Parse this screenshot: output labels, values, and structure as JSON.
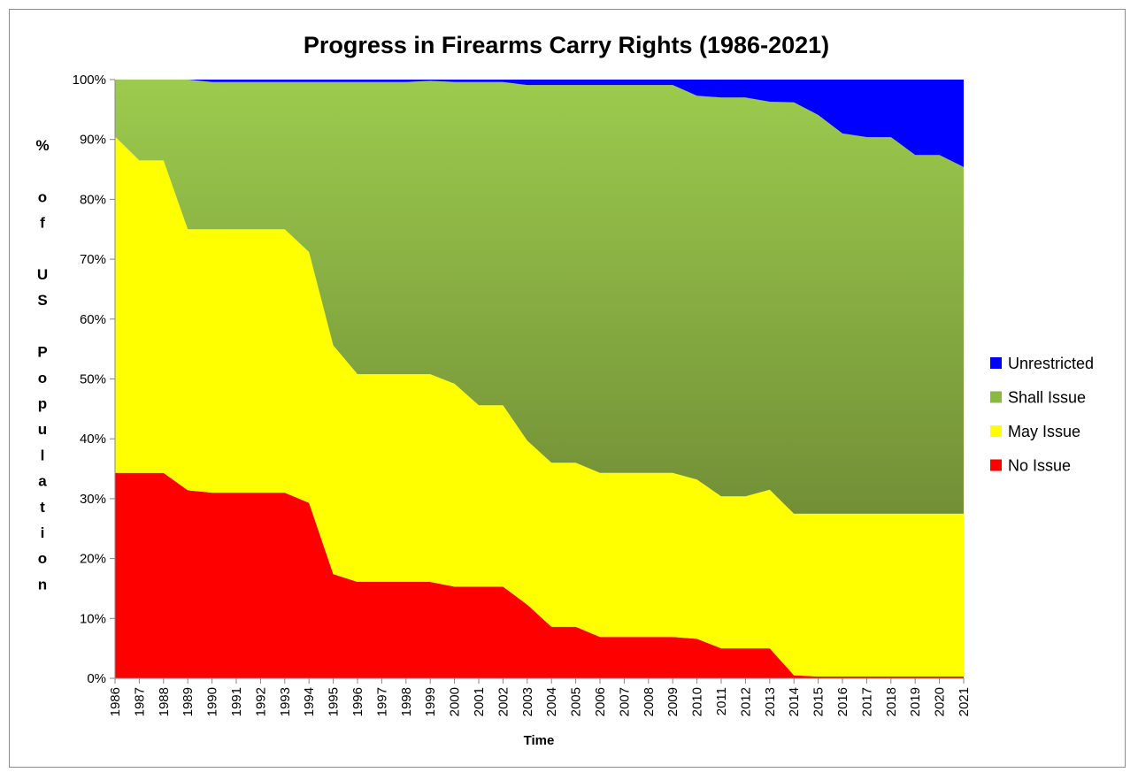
{
  "chart_data": {
    "type": "area",
    "stacked": true,
    "normalized_percent": true,
    "title": "Progress in Firearms Carry Rights (1986-2021)",
    "xlabel": "Time",
    "ylabel": "% of US Population",
    "x": [
      "1986",
      "1987",
      "1988",
      "1989",
      "1990",
      "1991",
      "1992",
      "1993",
      "1994",
      "1995",
      "1996",
      "1997",
      "1998",
      "1999",
      "2000",
      "2001",
      "2002",
      "2003",
      "2004",
      "2005",
      "2006",
      "2007",
      "2008",
      "2009",
      "2010",
      "2011",
      "2012",
      "2013",
      "2014",
      "2015",
      "2016",
      "2017",
      "2018",
      "2019",
      "2020",
      "2021"
    ],
    "ylim": [
      0,
      100
    ],
    "yticks": [
      "0%",
      "10%",
      "20%",
      "30%",
      "40%",
      "50%",
      "60%",
      "70%",
      "80%",
      "90%",
      "100%"
    ],
    "legend_position": "right",
    "series": [
      {
        "name": "No Issue",
        "color": "#ff0000",
        "values": [
          34.3,
          34.3,
          34.3,
          31.4,
          31.0,
          31.0,
          31.0,
          31.0,
          29.3,
          17.4,
          16.1,
          16.1,
          16.1,
          16.1,
          15.3,
          15.3,
          15.3,
          12.3,
          8.6,
          8.6,
          6.9,
          6.9,
          6.9,
          6.9,
          6.6,
          5.0,
          5.0,
          5.0,
          0.5,
          0.3,
          0.3,
          0.3,
          0.3,
          0.3,
          0.3,
          0.3
        ]
      },
      {
        "name": "May Issue",
        "color": "#ffff00",
        "values": [
          56.2,
          52.2,
          52.2,
          43.6,
          44.0,
          44.0,
          44.0,
          44.0,
          41.9,
          38.2,
          34.7,
          34.7,
          34.7,
          34.7,
          33.9,
          30.3,
          30.3,
          27.4,
          27.4,
          27.4,
          27.4,
          27.4,
          27.4,
          27.4,
          26.6,
          25.4,
          25.4,
          26.5,
          27.0,
          27.2,
          27.2,
          27.2,
          27.2,
          27.2,
          27.2,
          27.2
        ]
      },
      {
        "name": "Shall Issue",
        "color": "#8ab841",
        "values": [
          9.5,
          13.5,
          13.5,
          25.0,
          24.6,
          24.6,
          24.6,
          24.6,
          28.4,
          44.0,
          48.8,
          48.8,
          48.8,
          49.0,
          50.4,
          54.0,
          54.0,
          59.4,
          63.1,
          63.1,
          64.8,
          64.8,
          64.8,
          64.8,
          64.1,
          66.6,
          66.6,
          64.8,
          68.7,
          66.6,
          63.5,
          62.9,
          62.9,
          59.9,
          59.9,
          57.9
        ]
      },
      {
        "name": "Unrestricted",
        "color": "#0000ff",
        "values": [
          0.0,
          0.0,
          0.0,
          0.0,
          0.4,
          0.4,
          0.4,
          0.4,
          0.4,
          0.4,
          0.4,
          0.4,
          0.4,
          0.2,
          0.4,
          0.4,
          0.4,
          0.9,
          0.9,
          0.9,
          0.9,
          0.9,
          0.9,
          0.9,
          2.7,
          3.0,
          3.0,
          3.7,
          3.8,
          5.9,
          9.0,
          9.6,
          9.6,
          12.6,
          12.6,
          14.6
        ]
      }
    ]
  }
}
